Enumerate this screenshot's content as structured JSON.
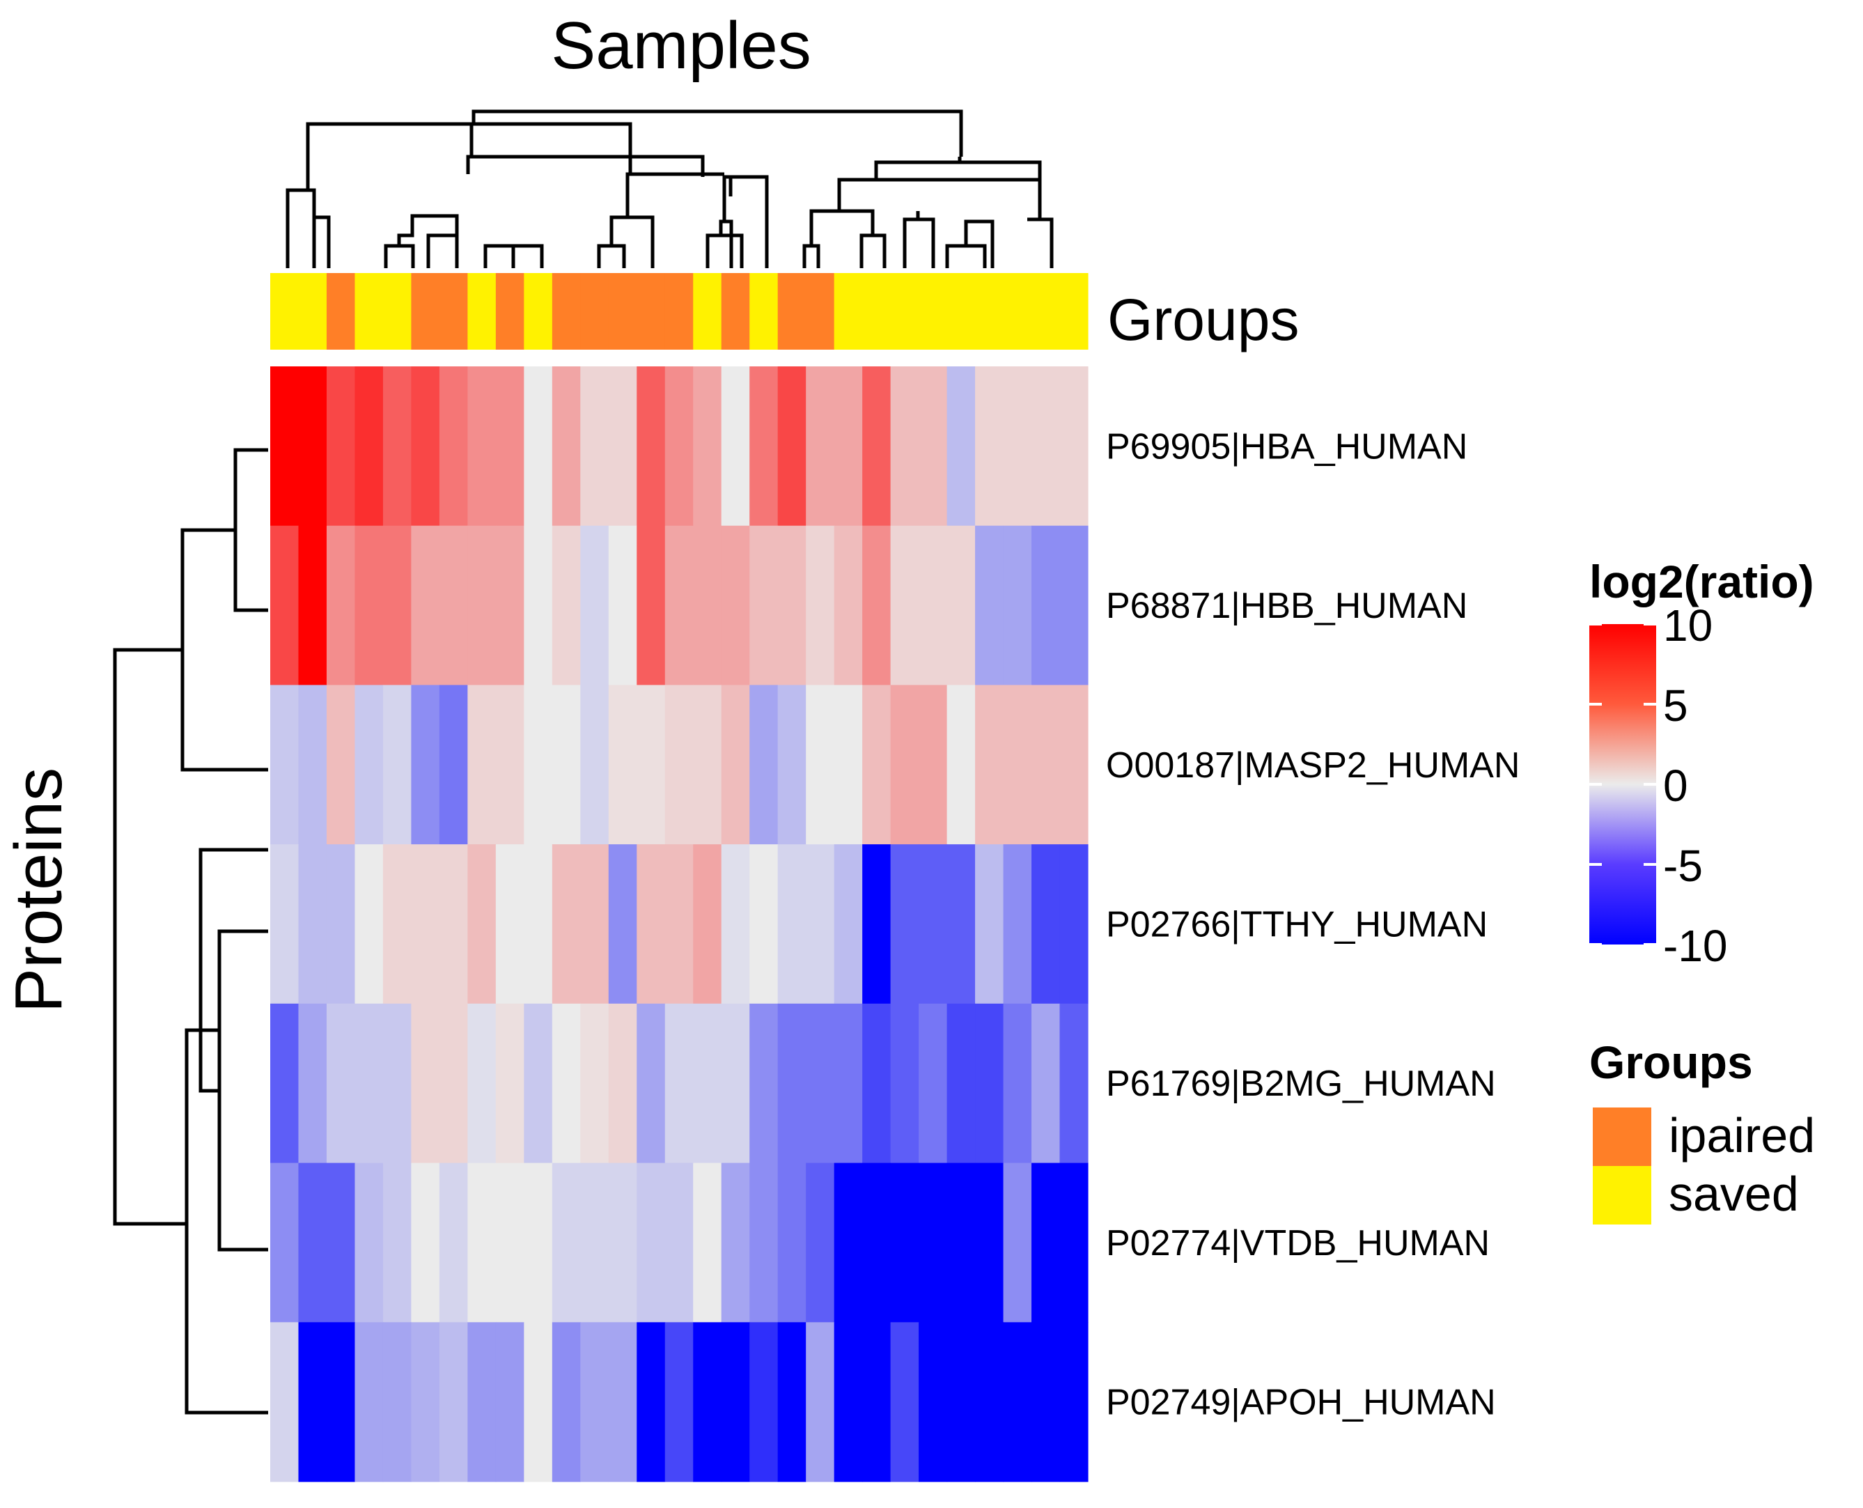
{
  "chart_data": {
    "type": "heatmap",
    "title": "Samples",
    "ylabel": "Proteins",
    "annotation": {
      "label": "Groups",
      "values": [
        "saved",
        "saved",
        "ipaired",
        "saved",
        "saved",
        "ipaired",
        "ipaired",
        "saved",
        "ipaired",
        "saved",
        "ipaired",
        "ipaired",
        "ipaired",
        "ipaired",
        "ipaired",
        "saved",
        "ipaired",
        "saved",
        "ipaired",
        "ipaired",
        "saved",
        "saved",
        "saved",
        "saved",
        "saved",
        "saved",
        "saved",
        "saved",
        "saved"
      ]
    },
    "rows": [
      "P69905|HBA_HUMAN",
      "P68871|HBB_HUMAN",
      "O00187|MASP2_HUMAN",
      "P02766|TTHY_HUMAN",
      "P61769|B2MG_HUMAN",
      "P02774|VTDB_HUMAN",
      "P02749|APOH_HUMAN"
    ],
    "values": [
      [
        10,
        10,
        7,
        8,
        6,
        7,
        5,
        4,
        4,
        0,
        3,
        1,
        1,
        6,
        4,
        3,
        0,
        5,
        7,
        3,
        3,
        6,
        2,
        2,
        -2,
        1,
        1,
        1,
        1
      ],
      [
        7,
        10,
        4,
        5,
        5,
        3,
        3,
        3,
        3,
        0,
        1,
        -1,
        0,
        6,
        3,
        3,
        3,
        2,
        2,
        1,
        2,
        4,
        1,
        1,
        1,
        -3,
        -3,
        -4,
        -4
      ],
      [
        -1.5,
        -2,
        2,
        -1.5,
        -1,
        -4,
        -5,
        1,
        1,
        0,
        0,
        -1,
        0.5,
        0.5,
        1,
        1,
        2,
        -3,
        -2,
        0,
        0,
        2,
        3,
        3,
        0,
        2,
        2,
        2,
        2
      ],
      [
        -1,
        -2,
        -2,
        0,
        1,
        1,
        1,
        2,
        0,
        0,
        2,
        2,
        -4,
        2,
        2,
        3,
        -0.5,
        0,
        -1,
        -1,
        -2,
        -10,
        -6,
        -6,
        -6,
        -2,
        -4,
        -7,
        -7
      ],
      [
        -6,
        -3,
        -1.5,
        -1.5,
        -1.5,
        1,
        1,
        -0.5,
        0.5,
        -1.5,
        0,
        0.5,
        1,
        -3,
        -1,
        -1,
        -1,
        -4,
        -5,
        -5,
        -5,
        -7,
        -6,
        -5,
        -7,
        -7,
        -5,
        -3,
        -6
      ],
      [
        -4,
        -6,
        -6,
        -2,
        -1.5,
        0,
        -1,
        0,
        0,
        0,
        -1,
        -1,
        -1,
        -1.5,
        -1.5,
        0,
        -3,
        -4,
        -5,
        -6,
        -10,
        -10,
        -10,
        -10,
        -10,
        -10,
        -4,
        -10,
        -10
      ],
      [
        -1,
        -10,
        -10,
        -3,
        -3,
        -2.5,
        -2,
        -3.5,
        -3.5,
        0,
        -4,
        -3,
        -3,
        -10,
        -7,
        -10,
        -10,
        -8,
        -10,
        -3,
        -10,
        -10,
        -7,
        -10,
        -10,
        -10,
        -10,
        -10,
        -10
      ]
    ],
    "color_scale": {
      "title": "log2(ratio)",
      "ticks": [
        10,
        5,
        0,
        -5,
        -10
      ],
      "min": -10,
      "max": 10,
      "colors": {
        "high": "#ff0000",
        "mid": "#ebebeb",
        "low": "#0000ff"
      }
    },
    "legend": {
      "title": "Groups",
      "items": [
        {
          "label": "ipaired",
          "color": "#ff7f27"
        },
        {
          "label": "saved",
          "color": "#fff200"
        }
      ]
    },
    "column_dendrogram": "present",
    "row_dendrogram": "present"
  }
}
